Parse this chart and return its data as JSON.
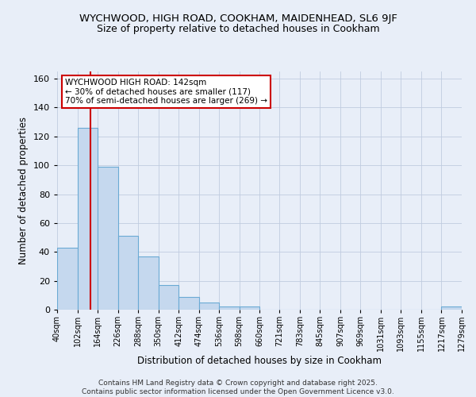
{
  "title_line1": "WYCHWOOD, HIGH ROAD, COOKHAM, MAIDENHEAD, SL6 9JF",
  "title_line2": "Size of property relative to detached houses in Cookham",
  "xlabel": "Distribution of detached houses by size in Cookham",
  "ylabel": "Number of detached properties",
  "bar_values": [
    43,
    126,
    99,
    51,
    37,
    17,
    9,
    5,
    2,
    2,
    0,
    0,
    0,
    0,
    0,
    0,
    0,
    0,
    0,
    2
  ],
  "bin_edges": [
    40,
    102,
    164,
    226,
    288,
    350,
    412,
    474,
    536,
    598,
    660,
    721,
    783,
    845,
    907,
    969,
    1031,
    1093,
    1155,
    1217,
    1279
  ],
  "tick_labels": [
    "40sqm",
    "102sqm",
    "164sqm",
    "226sqm",
    "288sqm",
    "350sqm",
    "412sqm",
    "474sqm",
    "536sqm",
    "598sqm",
    "660sqm",
    "721sqm",
    "783sqm",
    "845sqm",
    "907sqm",
    "969sqm",
    "1031sqm",
    "1093sqm",
    "1155sqm",
    "1217sqm",
    "1279sqm"
  ],
  "bar_color": "#c5d8ee",
  "bar_edge_color": "#6aaad4",
  "marker_value": 142,
  "marker_color": "#cc0000",
  "annotation_text": "WYCHWOOD HIGH ROAD: 142sqm\n← 30% of detached houses are smaller (117)\n70% of semi-detached houses are larger (269) →",
  "annotation_box_color": "#ffffff",
  "annotation_box_edge_color": "#cc0000",
  "ylim": [
    0,
    165
  ],
  "yticks": [
    0,
    20,
    40,
    60,
    80,
    100,
    120,
    140,
    160
  ],
  "background_color": "#e8eef8",
  "grid_color": "#c0cce0",
  "footer_text": "Contains HM Land Registry data © Crown copyright and database right 2025.\nContains public sector information licensed under the Open Government Licence v3.0.",
  "title_fontsize": 9.5,
  "subtitle_fontsize": 9,
  "axis_label_fontsize": 8.5,
  "tick_fontsize": 7,
  "annotation_fontsize": 7.5,
  "footer_fontsize": 6.5
}
